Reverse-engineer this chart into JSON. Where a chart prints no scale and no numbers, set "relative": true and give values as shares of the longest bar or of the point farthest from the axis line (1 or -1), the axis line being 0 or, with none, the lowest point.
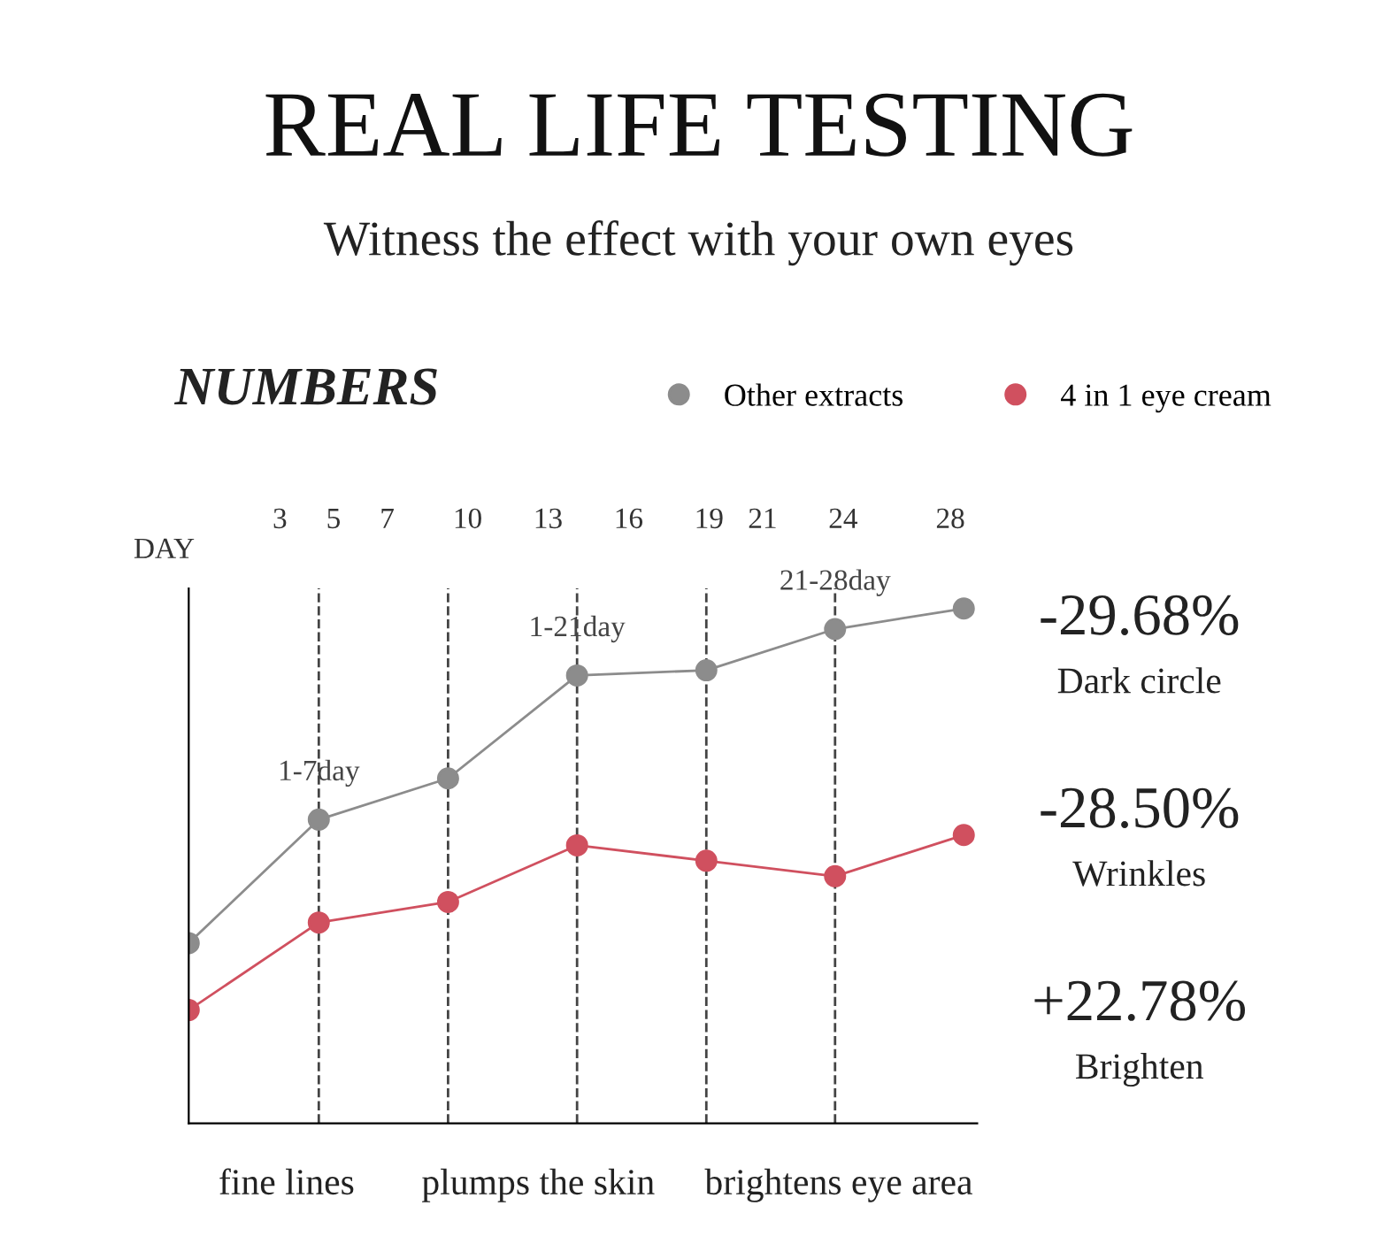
{
  "chart_data": {
    "type": "line",
    "title": "REAL LIFE TESTING",
    "subtitle": "Witness the effect with your own eyes",
    "xlabel": "DAY",
    "relative": true,
    "x": [
      -0.4,
      4.45,
      9.27,
      14.08,
      18.9,
      23.7,
      28.5
    ],
    "xlim": [
      -0.4,
      29.0
    ],
    "xticks": [
      3,
      5,
      7,
      10,
      13,
      16,
      19,
      21,
      24,
      28
    ],
    "tick_labels": "x",
    "series": [
      {
        "name": "Other extracts",
        "color": "#8c8c8c",
        "values": [
          0.35,
          0.59,
          0.67,
          0.87,
          0.88,
          0.96,
          1.0
        ]
      },
      {
        "name": "4 in 1 eye cream",
        "color": "#d0505f",
        "values": [
          0.22,
          0.39,
          0.43,
          0.54,
          0.51,
          0.48,
          0.56
        ]
      }
    ],
    "marker": "circle",
    "line_style": "solid",
    "legend": "top right",
    "grid": false,
    "ref_lines": [
      {
        "axis": "x",
        "value": 4.45,
        "label": null,
        "line_style": "dashed",
        "color": "#444444"
      },
      {
        "axis": "x",
        "value": 9.27,
        "label": null,
        "line_style": "dashed",
        "color": "#444444"
      },
      {
        "axis": "x",
        "value": 14.08,
        "label": null,
        "line_style": "dashed",
        "color": "#444444"
      },
      {
        "axis": "x",
        "value": 18.9,
        "label": null,
        "line_style": "dashed",
        "color": "#444444"
      },
      {
        "axis": "x",
        "value": 23.7,
        "label": null,
        "line_style": "dashed",
        "color": "#444444"
      }
    ],
    "annotations": [
      {
        "text": "1-7day",
        "x": 4.45,
        "y": 0.59
      },
      {
        "text": "1-21day",
        "x": 14.08,
        "y": 0.87
      },
      {
        "text": "21-28day",
        "x": 23.7,
        "y": 0.96
      },
      "NUMBERS",
      "fine lines",
      "plumps the skin",
      "brightens eye area",
      "-29.68%",
      "Dark circle",
      "-28.50%",
      "Wrinkles",
      "+22.78%",
      "Brighten"
    ]
  }
}
